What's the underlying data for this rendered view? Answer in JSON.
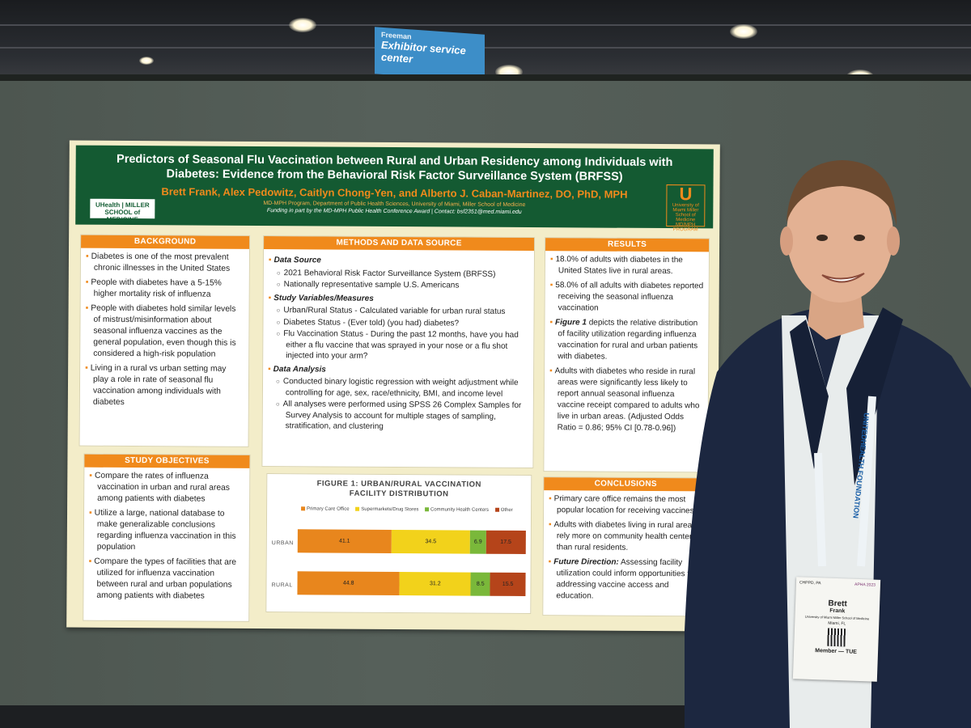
{
  "sign": {
    "line1": "Freeman",
    "line2": "Exhibitor service center"
  },
  "poster": {
    "title": "Predictors of Seasonal Flu Vaccination between Rural and Urban Residency among Individuals with Diabetes: Evidence from the Behavioral Risk Factor Surveillance System (BRFSS)",
    "authors": "Brett Frank, Alex Pedowitz, Caitlyn Chong-Yen, and Alberto J. Caban-Martinez, DO, PhD, MPH",
    "department": "MD-MPH Program, Department of Public Health Sciences, University of Miami, Miller School of Medicine",
    "funding": "Funding in part by the MD-MPH Public Health Conference Award | Contact: bsf2351@med.miami.edu",
    "logo_left": "UHealth | MILLER SCHOOL of MEDICINE",
    "logo_right_mark": "U",
    "logo_right_text": "University of Miami Miller School of Medicine MD/MPH PROGRAM",
    "background": {
      "heading": "BACKGROUND",
      "items": [
        "Diabetes is one of the most prevalent chronic illnesses in the United States",
        "People with diabetes have a 5-15% higher mortality risk of influenza",
        "People with diabetes hold similar levels of mistrust/misinformation about seasonal influenza vaccines as the general population, even though this is considered a high-risk population",
        "Living in a rural vs urban setting may play a role in rate of seasonal flu vaccination among individuals with diabetes"
      ]
    },
    "objectives": {
      "heading": "STUDY OBJECTIVES",
      "items": [
        "Compare the rates of influenza vaccination in urban and rural areas among patients with diabetes",
        "Utilize a large, national database to make generalizable conclusions regarding influenza vaccination in this population",
        "Compare the types of facilities that are utilized for influenza vaccination between rural and urban populations among patients with diabetes"
      ]
    },
    "methods": {
      "heading": "METHODS AND DATA SOURCE",
      "data_source": "Data Source",
      "ds_items": [
        "2021 Behavioral Risk Factor Surveillance System (BRFSS)",
        "Nationally representative sample U.S. Americans"
      ],
      "variables": "Study Variables/Measures",
      "var_items": [
        "Urban/Rural Status -  Calculated variable for urban rural status",
        "Diabetes Status - (Ever told) (you had) diabetes?",
        "Flu Vaccination Status - During the past 12 months, have you had either a flu vaccine that was sprayed in your nose or a flu shot injected into your arm?"
      ],
      "analysis": "Data Analysis",
      "an_items": [
        "Conducted binary logistic regression with weight adjustment while controlling for age, sex, race/ethnicity, BMI, and income level",
        "All analyses were performed using SPSS 26 Complex Samples for Survey Analysis to account for multiple stages of sampling, stratification, and clustering"
      ]
    },
    "results": {
      "heading": "RESULTS",
      "items": [
        "18.0% of adults with diabetes in the United States live in rural areas.",
        "58.0% of all adults with diabetes reported receiving the seasonal influenza vaccination",
        "depicts the relative distribution of facility utilization regarding influenza vaccination for rural and urban patients with diabetes.",
        "Adults with diabetes who reside in rural areas were significantly less likely to report annual seasonal influenza vaccine receipt compared to adults who live in urban areas. (Adjusted Odds Ratio = 0.86; 95% CI [0.78-0.96])"
      ],
      "figure_ref": "Figure 1"
    },
    "conclusions": {
      "heading": "CONCLUSIONS",
      "items": [
        "Primary care office remains the most popular location for receiving vaccines.",
        "Adults with diabetes living in rural areas rely more on community health centers than rural residents."
      ],
      "future_label": "Future Direction:",
      "future_text": "Assessing facility utilization could inform opportunities for addressing vaccine access and education."
    }
  },
  "chart_data": {
    "type": "bar",
    "stacked": "horizontal-100",
    "title": "FIGURE 1: URBAN/RURAL VACCINATION FACILITY DISTRIBUTION",
    "categories": [
      "URBAN",
      "RURAL"
    ],
    "series": [
      {
        "name": "Primary Care Office",
        "values": [
          41.1,
          44.8
        ],
        "color": "#e8861d"
      },
      {
        "name": "Supermarkets/Drug Stores",
        "values": [
          34.5,
          31.2
        ],
        "color": "#f2d21b"
      },
      {
        "name": "Community Health Centers",
        "values": [
          6.9,
          8.5
        ],
        "color": "#7ab83a"
      },
      {
        "name": "Other",
        "values": [
          17.5,
          15.5
        ],
        "color": "#b5441a"
      }
    ],
    "legend": "top"
  },
  "badge": {
    "conference": "APHA 2023",
    "top": "CHPPD, PA",
    "first": "Brett",
    "last": "Frank",
    "org": "University of Miami Miller School of Medicine",
    "city": "Miami, FL",
    "role": "Member — TUE"
  },
  "lanyard": "UNITEDHEALTH FOUNDATION"
}
